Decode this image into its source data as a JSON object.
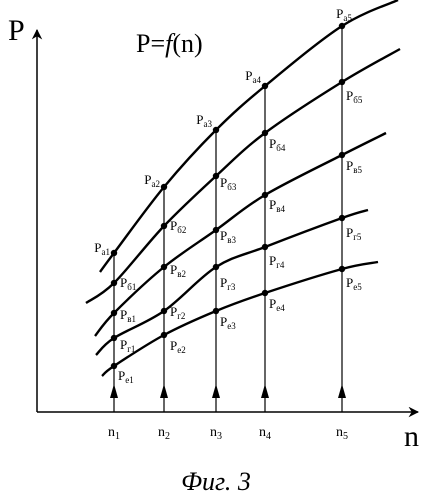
{
  "figure": {
    "y_axis_label": "P",
    "x_axis_label": "n",
    "formula": {
      "prefix": "P=",
      "func": "f",
      "suffix": "(n)"
    },
    "caption": "Фиг. 3"
  },
  "x_ticks": [
    {
      "main": "n",
      "sub": "1"
    },
    {
      "main": "n",
      "sub": "2"
    },
    {
      "main": "n",
      "sub": "3"
    },
    {
      "main": "n",
      "sub": "4"
    },
    {
      "main": "n",
      "sub": "5"
    }
  ],
  "curves": [
    {
      "key": "а",
      "points": [
        {
          "main": "P",
          "sub": "а1"
        },
        {
          "main": "P",
          "sub": "а2"
        },
        {
          "main": "P",
          "sub": "а3"
        },
        {
          "main": "P",
          "sub": "а4"
        },
        {
          "main": "P",
          "sub": "а5"
        }
      ]
    },
    {
      "key": "б",
      "points": [
        {
          "main": "P",
          "sub": "б1"
        },
        {
          "main": "P",
          "sub": "б2"
        },
        {
          "main": "P",
          "sub": "б3"
        },
        {
          "main": "P",
          "sub": "б4"
        },
        {
          "main": "P",
          "sub": "б5"
        }
      ]
    },
    {
      "key": "в",
      "points": [
        {
          "main": "P",
          "sub": "в1"
        },
        {
          "main": "P",
          "sub": "в2"
        },
        {
          "main": "P",
          "sub": "в3"
        },
        {
          "main": "P",
          "sub": "в4"
        },
        {
          "main": "P",
          "sub": "в5"
        }
      ]
    },
    {
      "key": "г",
      "points": [
        {
          "main": "P",
          "sub": "г1"
        },
        {
          "main": "P",
          "sub": "г2"
        },
        {
          "main": "P",
          "sub": "г3"
        },
        {
          "main": "P",
          "sub": "г4"
        },
        {
          "main": "P",
          "sub": "г5"
        }
      ]
    },
    {
      "key": "е",
      "points": [
        {
          "main": "P",
          "sub": "е1"
        },
        {
          "main": "P",
          "sub": "е2"
        },
        {
          "main": "P",
          "sub": "е3"
        },
        {
          "main": "P",
          "sub": "е4"
        },
        {
          "main": "P",
          "sub": "е5"
        }
      ]
    }
  ]
}
